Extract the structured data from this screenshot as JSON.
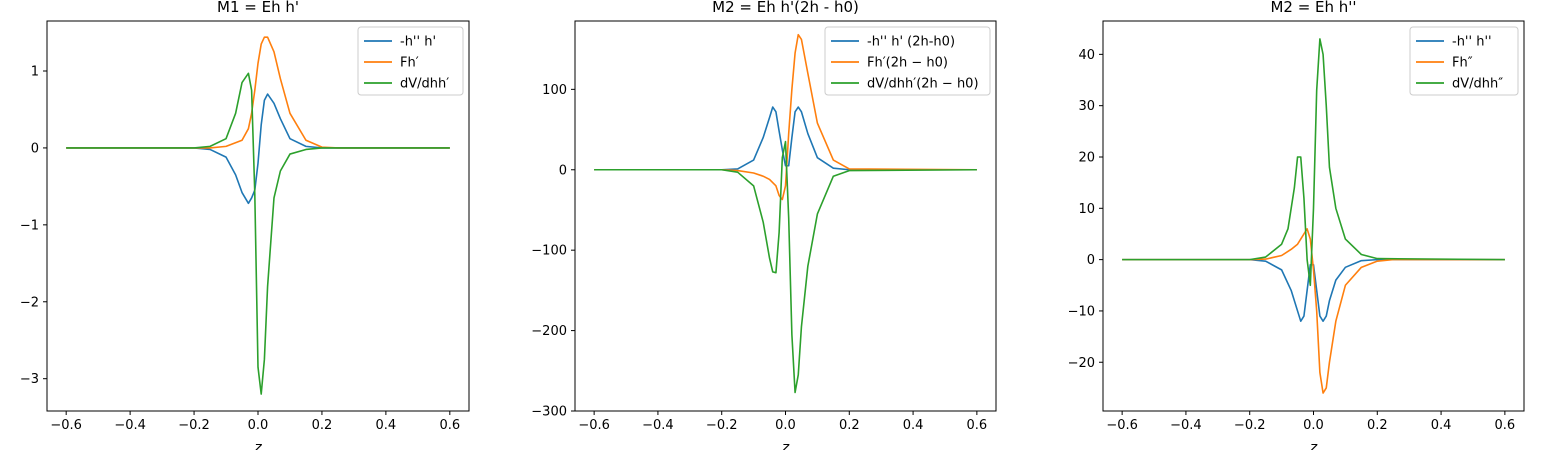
{
  "chart_data": [
    {
      "type": "line",
      "title": "M1 = Eh h'",
      "xlabel": "z",
      "ylabel": "",
      "xlim": [
        -0.66,
        0.66
      ],
      "ylim": [
        -3.42,
        1.65
      ],
      "xticks": [
        -0.6,
        -0.4,
        -0.2,
        0.0,
        0.2,
        0.4,
        0.6
      ],
      "xtick_labels": [
        "−0.6",
        "−0.4",
        "−0.2",
        "0.0",
        "0.2",
        "0.4",
        "0.6"
      ],
      "yticks": [
        -3,
        -2,
        -1,
        0,
        1
      ],
      "ytick_labels": [
        "−3",
        "−2",
        "−1",
        "0",
        "1"
      ],
      "legend_position": "upper right",
      "series": [
        {
          "name": "-h'' h'",
          "color": "#1f77b4",
          "x": [
            -0.6,
            -0.2,
            -0.15,
            -0.1,
            -0.07,
            -0.05,
            -0.03,
            -0.02,
            -0.01,
            0.0,
            0.01,
            0.02,
            0.03,
            0.05,
            0.07,
            0.1,
            0.15,
            0.2,
            0.6
          ],
          "y": [
            0,
            0,
            -0.02,
            -0.12,
            -0.35,
            -0.58,
            -0.72,
            -0.65,
            -0.55,
            -0.2,
            0.3,
            0.62,
            0.7,
            0.58,
            0.38,
            0.12,
            0.02,
            0,
            0
          ]
        },
        {
          "name": "Fh′",
          "color": "#ff7f0e",
          "x": [
            -0.6,
            -0.2,
            -0.15,
            -0.1,
            -0.05,
            -0.03,
            -0.02,
            -0.01,
            0.0,
            0.01,
            0.02,
            0.03,
            0.05,
            0.07,
            0.1,
            0.15,
            0.2,
            0.25,
            0.6
          ],
          "y": [
            0,
            0,
            0.0,
            0.02,
            0.1,
            0.25,
            0.45,
            0.75,
            1.1,
            1.35,
            1.44,
            1.44,
            1.25,
            0.9,
            0.45,
            0.1,
            0.01,
            0,
            0
          ]
        },
        {
          "name": "dV/dhh′",
          "color": "#2ca02c",
          "x": [
            -0.6,
            -0.2,
            -0.15,
            -0.1,
            -0.07,
            -0.05,
            -0.03,
            -0.02,
            -0.01,
            0.0,
            0.01,
            0.02,
            0.03,
            0.05,
            0.07,
            0.1,
            0.15,
            0.2,
            0.6
          ],
          "y": [
            0,
            0,
            0.02,
            0.12,
            0.45,
            0.85,
            0.97,
            0.75,
            -0.6,
            -2.85,
            -3.2,
            -2.75,
            -1.8,
            -0.65,
            -0.3,
            -0.08,
            -0.02,
            0,
            0
          ]
        }
      ]
    },
    {
      "type": "line",
      "title": "M2 = Eh h'(2h - h0)",
      "xlabel": "z",
      "ylabel": "",
      "xlim": [
        -0.66,
        0.66
      ],
      "ylim": [
        -300,
        185
      ],
      "xticks": [
        -0.6,
        -0.4,
        -0.2,
        0.0,
        0.2,
        0.4,
        0.6
      ],
      "xtick_labels": [
        "−0.6",
        "−0.4",
        "−0.2",
        "0.0",
        "0.2",
        "0.4",
        "0.6"
      ],
      "yticks": [
        -300,
        -200,
        -100,
        0,
        100
      ],
      "ytick_labels": [
        "−300",
        "−200",
        "−100",
        "0",
        "100"
      ],
      "legend_position": "upper right",
      "series": [
        {
          "name": "-h'' h' (2h-h0)",
          "color": "#1f77b4",
          "x": [
            -0.6,
            -0.2,
            -0.15,
            -0.1,
            -0.07,
            -0.05,
            -0.04,
            -0.03,
            -0.02,
            -0.01,
            0.0,
            0.01,
            0.02,
            0.03,
            0.04,
            0.05,
            0.07,
            0.1,
            0.15,
            0.2,
            0.6
          ],
          "y": [
            0,
            0,
            1,
            12,
            40,
            65,
            78,
            72,
            48,
            25,
            5,
            5,
            40,
            72,
            78,
            72,
            45,
            15,
            2,
            0,
            0
          ]
        },
        {
          "name": "Fh′(2h − h0)",
          "color": "#ff7f0e",
          "x": [
            -0.6,
            -0.2,
            -0.15,
            -0.1,
            -0.07,
            -0.05,
            -0.03,
            -0.02,
            -0.01,
            0.0,
            0.01,
            0.02,
            0.03,
            0.04,
            0.05,
            0.07,
            0.1,
            0.15,
            0.2,
            0.6
          ],
          "y": [
            0,
            0,
            -1,
            -4,
            -8,
            -12,
            -20,
            -32,
            -37,
            -20,
            45,
            100,
            145,
            168,
            162,
            120,
            58,
            12,
            1,
            0
          ]
        },
        {
          "name": "dV/dhh′(2h − h0)",
          "color": "#2ca02c",
          "x": [
            -0.6,
            -0.2,
            -0.15,
            -0.1,
            -0.07,
            -0.05,
            -0.04,
            -0.03,
            -0.02,
            -0.01,
            0.0,
            0.01,
            0.02,
            0.03,
            0.04,
            0.05,
            0.07,
            0.1,
            0.15,
            0.2,
            0.6
          ],
          "y": [
            0,
            0,
            -3,
            -20,
            -65,
            -110,
            -127,
            -128,
            -78,
            15,
            35,
            -60,
            -205,
            -277,
            -255,
            -195,
            -120,
            -55,
            -8,
            -1,
            0
          ]
        }
      ]
    },
    {
      "type": "line",
      "title": "M2 = Eh h''",
      "xlabel": "z",
      "ylabel": "",
      "xlim": [
        -0.66,
        0.66
      ],
      "ylim": [
        -29.5,
        46.5
      ],
      "xticks": [
        -0.6,
        -0.4,
        -0.2,
        0.0,
        0.2,
        0.4,
        0.6
      ],
      "xtick_labels": [
        "−0.6",
        "−0.4",
        "−0.2",
        "0.0",
        "0.2",
        "0.4",
        "0.6"
      ],
      "yticks": [
        -20,
        -10,
        0,
        10,
        20,
        30,
        40
      ],
      "ytick_labels": [
        "−20",
        "−10",
        "0",
        "10",
        "20",
        "30",
        "40"
      ],
      "legend_position": "upper right",
      "series": [
        {
          "name": "-h'' h''",
          "color": "#1f77b4",
          "x": [
            -0.6,
            -0.2,
            -0.15,
            -0.1,
            -0.07,
            -0.05,
            -0.04,
            -0.03,
            -0.02,
            -0.01,
            0.0,
            0.01,
            0.02,
            0.03,
            0.04,
            0.05,
            0.07,
            0.1,
            0.15,
            0.2,
            0.6
          ],
          "y": [
            0,
            0,
            -0.3,
            -2,
            -6,
            -10,
            -12,
            -11,
            -6,
            -1,
            -1,
            -6,
            -11,
            -12,
            -11,
            -8,
            -4,
            -1.5,
            -0.2,
            0,
            0
          ]
        },
        {
          "name": "Fh″",
          "color": "#ff7f0e",
          "x": [
            -0.6,
            -0.2,
            -0.15,
            -0.1,
            -0.07,
            -0.05,
            -0.03,
            -0.02,
            -0.01,
            0.0,
            0.01,
            0.02,
            0.03,
            0.04,
            0.05,
            0.07,
            0.1,
            0.15,
            0.2,
            0.25,
            0.6
          ],
          "y": [
            0,
            0,
            0.1,
            0.8,
            2,
            3,
            5,
            6,
            4,
            -2,
            -10,
            -22,
            -26,
            -25,
            -20,
            -12,
            -5,
            -1.5,
            -0.3,
            0,
            0
          ]
        },
        {
          "name": "dV/dhh″",
          "color": "#2ca02c",
          "x": [
            -0.6,
            -0.2,
            -0.15,
            -0.1,
            -0.08,
            -0.06,
            -0.05,
            -0.04,
            -0.03,
            -0.02,
            -0.01,
            0.0,
            0.01,
            0.02,
            0.03,
            0.04,
            0.05,
            0.07,
            0.1,
            0.15,
            0.2,
            0.6
          ],
          "y": [
            0,
            0,
            0.5,
            3,
            6,
            14,
            20,
            20,
            12,
            0,
            -5,
            10,
            33,
            43,
            40,
            30,
            18,
            10,
            4,
            1,
            0.2,
            0
          ]
        }
      ]
    }
  ]
}
